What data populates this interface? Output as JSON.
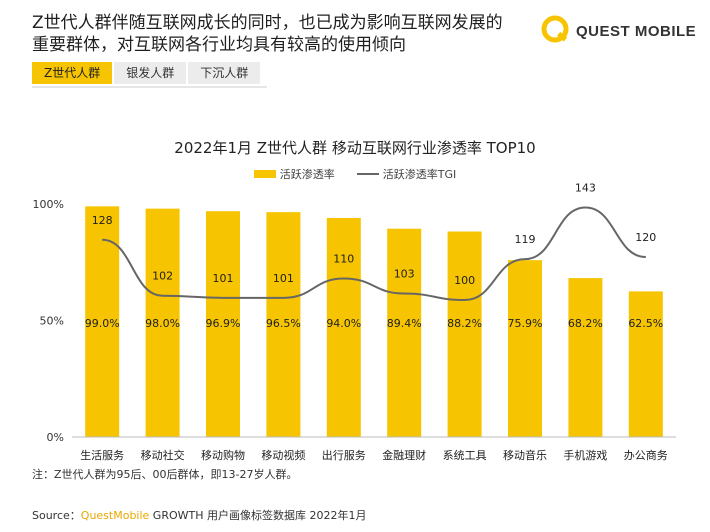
{
  "headline": "Z世代人群伴随互联网成长的同时，也已成为影响互联网发展的重要群体，对互联网各行业均具有较高的使用倾向",
  "logo": {
    "text": "QUEST MOBILE",
    "icon": "questmobile-logo-icon"
  },
  "tabs": [
    {
      "label": "Z世代人群",
      "active": true
    },
    {
      "label": "银发人群",
      "active": false
    },
    {
      "label": "下沉人群",
      "active": false
    }
  ],
  "colors": {
    "accent": "#f6c400",
    "bar": "#f6c400",
    "line": "#666666"
  },
  "chart_data": {
    "type": "bar",
    "title": "2022年1月 Z世代人群 移动互联网行业渗透率 TOP10",
    "categories": [
      "生活服务",
      "移动社交",
      "移动购物",
      "移动视频",
      "出行服务",
      "金融理财",
      "系统工具",
      "移动音乐",
      "手机游戏",
      "办公商务"
    ],
    "series": [
      {
        "name": "活跃渗透率",
        "kind": "bar",
        "values": [
          99.0,
          98.0,
          96.9,
          96.5,
          94.0,
          89.4,
          88.2,
          75.9,
          68.2,
          62.5
        ],
        "labels": [
          "99.0%",
          "98.0%",
          "96.9%",
          "96.5%",
          "94.0%",
          "89.4%",
          "88.2%",
          "75.9%",
          "68.2%",
          "62.5%"
        ]
      },
      {
        "name": "活跃渗透率TGI",
        "kind": "line",
        "values": [
          128,
          102,
          101,
          101,
          110,
          103,
          100,
          119,
          143,
          120
        ]
      }
    ],
    "yticks": [
      "100%",
      "50%",
      "0%"
    ],
    "ylim": [
      0,
      100
    ],
    "grid": false,
    "legend": "top-center"
  },
  "note": "注：Z世代人群为95后、00后群体，即13-27岁人群。",
  "source": {
    "prefix": "Source：",
    "brand": "QuestMobile",
    "rest": " GROWTH 用户画像标签数据库 2022年1月"
  }
}
